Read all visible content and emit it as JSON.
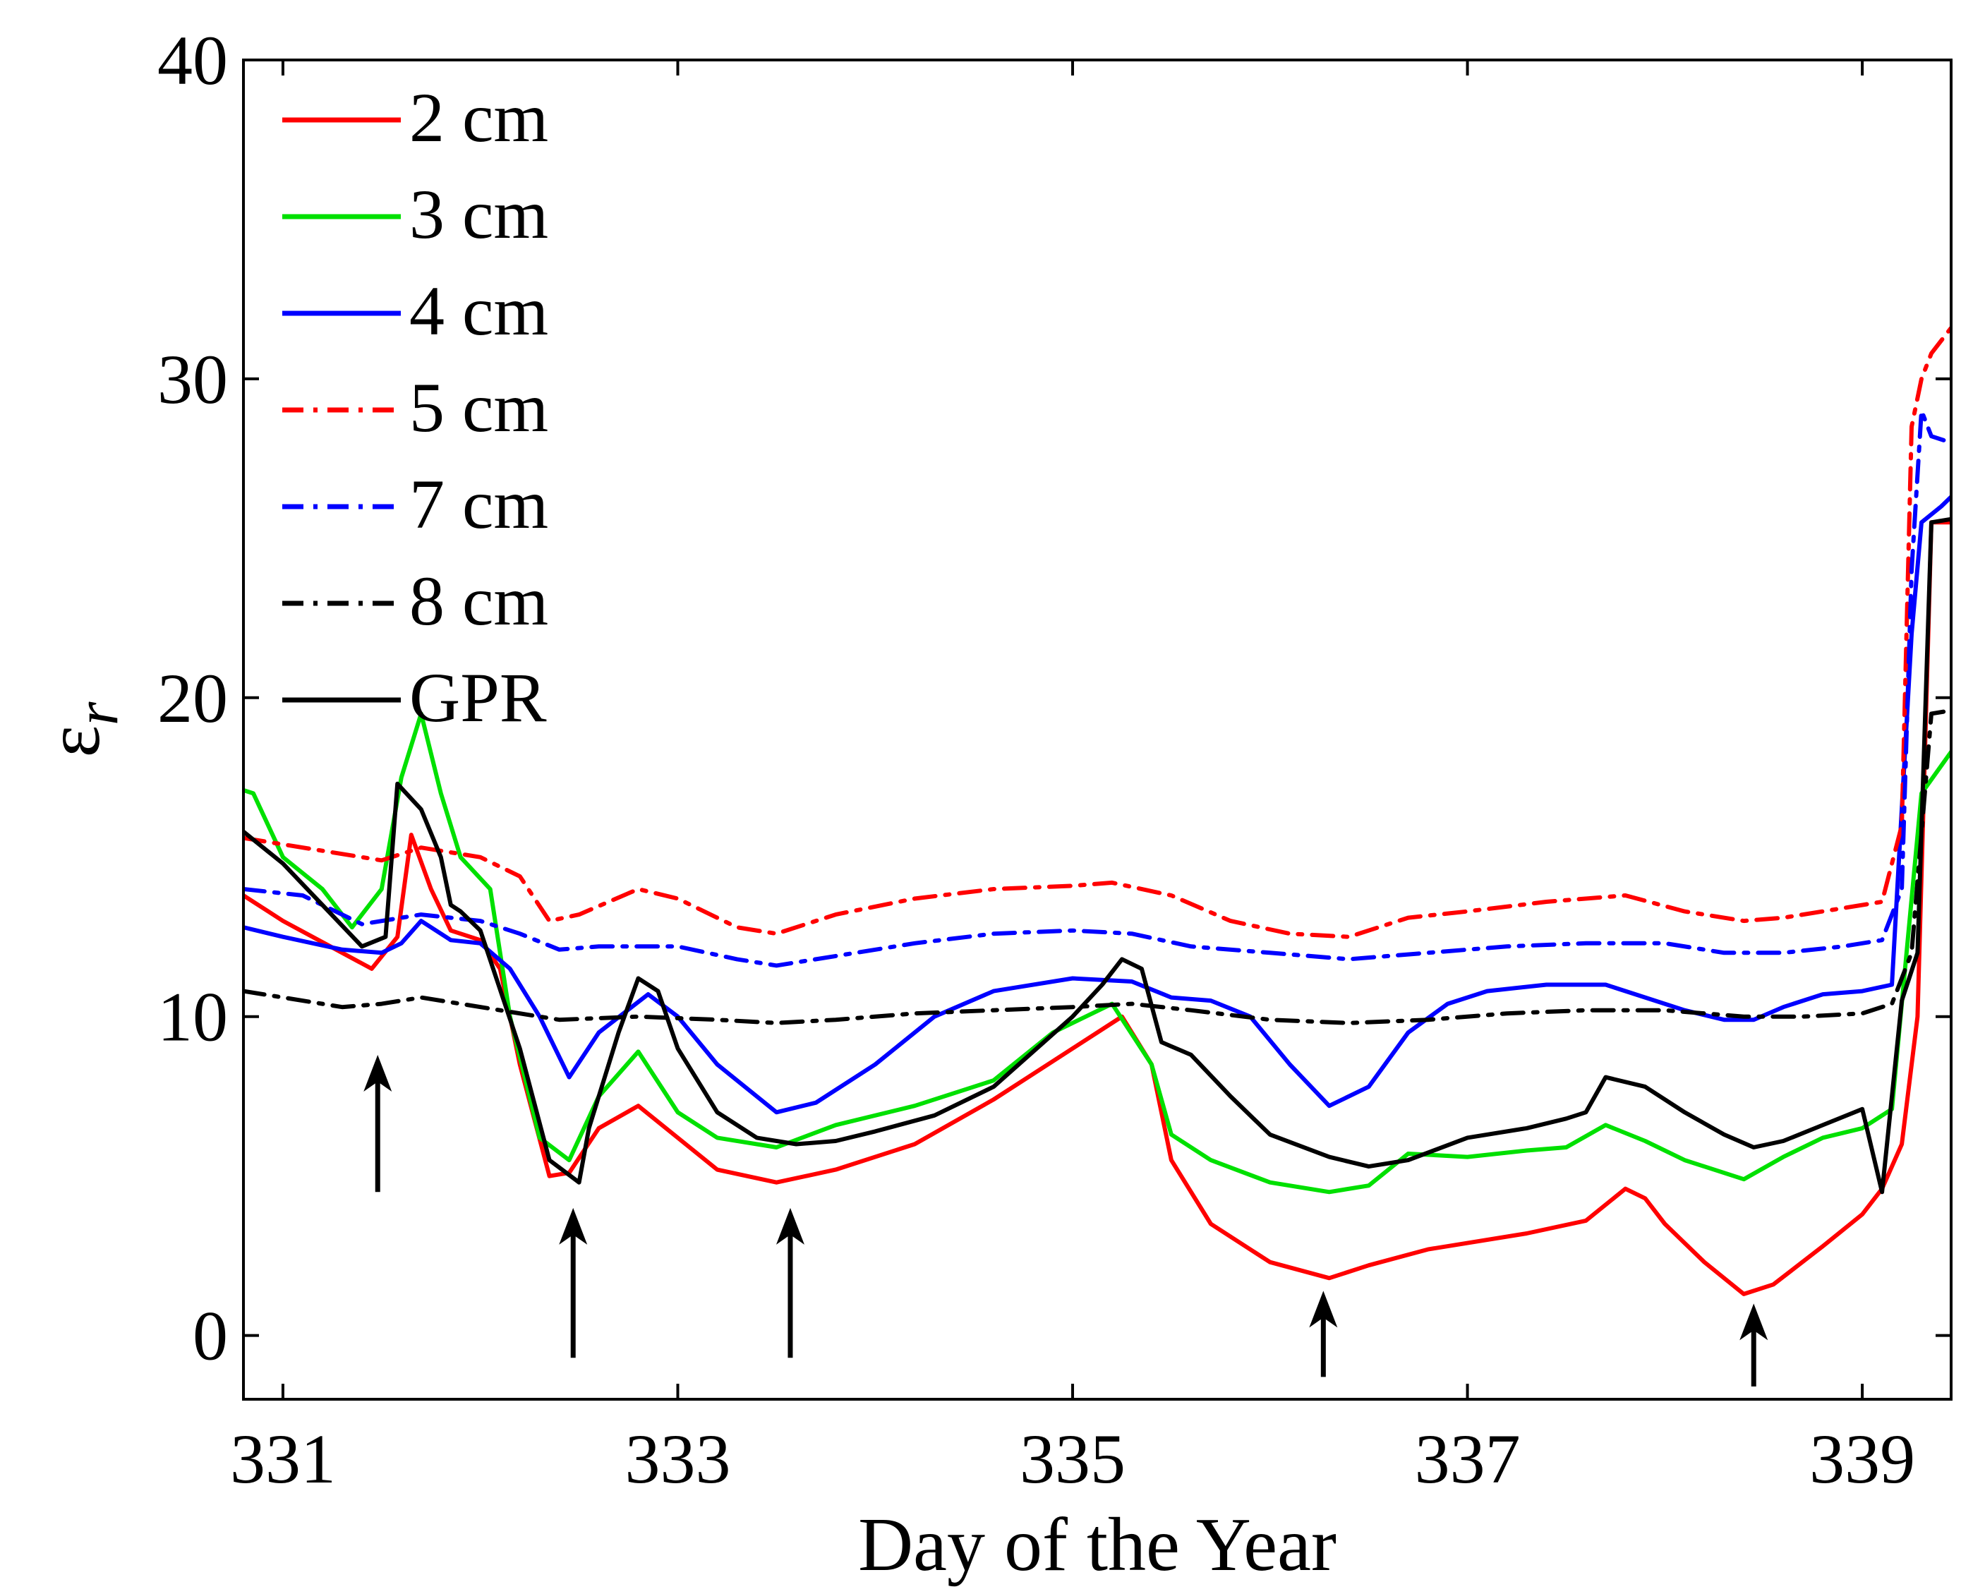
{
  "chart_data": {
    "type": "line",
    "title": "",
    "xlabel": "Day of the Year",
    "ylabel": "ε",
    "ylabel_subscript": "r",
    "xlim": [
      330.8,
      339.45
    ],
    "ylim": [
      -2,
      40
    ],
    "xticks": [
      331,
      333,
      335,
      337,
      339
    ],
    "xtick_labels": [
      "331",
      "333",
      "335",
      "337",
      "339"
    ],
    "yticks": [
      0,
      10,
      20,
      30,
      40
    ],
    "ytick_labels": [
      "0",
      "10",
      "20",
      "30",
      "40"
    ],
    "grid": false,
    "legend_position": "top-left",
    "series": [
      {
        "name": "2 cm",
        "color": "#ff0000",
        "dash": "solid",
        "x": [
          330.8,
          331.0,
          331.3,
          331.45,
          331.58,
          331.65,
          331.75,
          331.85,
          332.0,
          332.1,
          332.2,
          332.35,
          332.45,
          332.6,
          332.8,
          333.0,
          333.2,
          333.5,
          333.8,
          334.2,
          334.6,
          335.0,
          335.25,
          335.4,
          335.5,
          335.7,
          336.0,
          336.3,
          336.5,
          336.8,
          337.0,
          337.3,
          337.6,
          337.8,
          337.9,
          338.0,
          338.2,
          338.4,
          338.55,
          338.8,
          339.0,
          339.1,
          339.2,
          339.28,
          339.35,
          339.45
        ],
        "y": [
          13.8,
          13.0,
          12.0,
          11.5,
          12.5,
          15.7,
          14.0,
          12.7,
          12.4,
          11.5,
          8.5,
          5.0,
          5.1,
          6.5,
          7.2,
          6.2,
          5.2,
          4.8,
          5.2,
          6.0,
          7.4,
          9.0,
          10.0,
          8.5,
          5.5,
          3.5,
          2.3,
          1.8,
          2.2,
          2.7,
          2.9,
          3.2,
          3.6,
          4.6,
          4.3,
          3.5,
          2.3,
          1.3,
          1.6,
          2.8,
          3.8,
          4.6,
          6.0,
          10.0,
          25.5,
          25.5
        ]
      },
      {
        "name": "3 cm",
        "color": "#00e000",
        "dash": "solid",
        "x": [
          330.8,
          330.85,
          331.0,
          331.2,
          331.35,
          331.5,
          331.6,
          331.7,
          331.8,
          331.9,
          332.05,
          332.15,
          332.3,
          332.45,
          332.6,
          332.8,
          333.0,
          333.2,
          333.5,
          333.8,
          334.2,
          334.6,
          334.9,
          335.2,
          335.4,
          335.5,
          335.7,
          336.0,
          336.3,
          336.5,
          336.7,
          337.0,
          337.3,
          337.5,
          337.7,
          337.9,
          338.1,
          338.4,
          338.6,
          338.8,
          339.0,
          339.15,
          339.3,
          339.45
        ],
        "y": [
          17.1,
          17.0,
          15.0,
          14.0,
          12.8,
          14.0,
          17.5,
          19.5,
          17.0,
          15.0,
          14.0,
          10.0,
          6.2,
          5.5,
          7.5,
          8.9,
          7.0,
          6.2,
          5.9,
          6.6,
          7.2,
          8.0,
          9.5,
          10.4,
          8.5,
          6.3,
          5.5,
          4.8,
          4.5,
          4.7,
          5.7,
          5.6,
          5.8,
          5.9,
          6.6,
          6.1,
          5.5,
          4.9,
          5.6,
          6.2,
          6.5,
          7.1,
          17.0,
          18.3
        ]
      },
      {
        "name": "4 cm",
        "color": "#0000ff",
        "dash": "solid",
        "x": [
          330.8,
          331.0,
          331.3,
          331.5,
          331.6,
          331.7,
          331.85,
          332.0,
          332.15,
          332.3,
          332.45,
          332.6,
          332.85,
          333.0,
          333.2,
          333.5,
          333.7,
          334.0,
          334.3,
          334.6,
          335.0,
          335.3,
          335.5,
          335.7,
          335.9,
          336.1,
          336.3,
          336.5,
          336.7,
          336.9,
          337.1,
          337.4,
          337.7,
          337.9,
          338.1,
          338.3,
          338.45,
          338.6,
          338.8,
          339.0,
          339.15,
          339.25,
          339.3,
          339.4,
          339.45
        ],
        "y": [
          12.8,
          12.5,
          12.1,
          12.0,
          12.3,
          13.0,
          12.4,
          12.3,
          11.5,
          10.0,
          8.1,
          9.5,
          10.7,
          10.0,
          8.5,
          7.0,
          7.3,
          8.5,
          10.0,
          10.8,
          11.2,
          11.1,
          10.6,
          10.5,
          10.0,
          8.5,
          7.2,
          7.8,
          9.5,
          10.4,
          10.8,
          11.0,
          11.0,
          10.6,
          10.2,
          9.9,
          9.9,
          10.3,
          10.7,
          10.8,
          11.0,
          22.0,
          25.5,
          26.0,
          26.3
        ]
      },
      {
        "name": "5 cm",
        "color": "#ff0000",
        "dash": "dashdot",
        "x": [
          330.8,
          331.2,
          331.5,
          331.7,
          332.0,
          332.2,
          332.35,
          332.5,
          332.8,
          333.0,
          333.3,
          333.5,
          333.8,
          334.2,
          334.6,
          335.0,
          335.2,
          335.5,
          335.8,
          336.1,
          336.4,
          336.7,
          337.0,
          337.4,
          337.8,
          338.1,
          338.4,
          338.6,
          338.9,
          339.1,
          339.2,
          339.25,
          339.3,
          339.35,
          339.45
        ],
        "y": [
          15.6,
          15.2,
          14.9,
          15.3,
          15.0,
          14.4,
          13.0,
          13.2,
          14.0,
          13.7,
          12.8,
          12.6,
          13.2,
          13.7,
          14.0,
          14.1,
          14.2,
          13.8,
          13.0,
          12.6,
          12.5,
          13.1,
          13.3,
          13.6,
          13.8,
          13.3,
          13.0,
          13.1,
          13.4,
          13.6,
          16.0,
          28.5,
          30.0,
          30.8,
          31.6
        ]
      },
      {
        "name": "7 cm",
        "color": "#0000ff",
        "dash": "dashdot",
        "x": [
          330.8,
          331.1,
          331.4,
          331.7,
          332.0,
          332.2,
          332.4,
          332.6,
          333.0,
          333.3,
          333.5,
          333.8,
          334.2,
          334.6,
          335.0,
          335.3,
          335.6,
          336.0,
          336.4,
          336.8,
          337.2,
          337.6,
          338.0,
          338.3,
          338.6,
          338.9,
          339.1,
          339.2,
          339.25,
          339.3,
          339.35,
          339.45
        ],
        "y": [
          14.0,
          13.8,
          12.9,
          13.2,
          13.0,
          12.6,
          12.1,
          12.2,
          12.2,
          11.8,
          11.6,
          11.9,
          12.3,
          12.6,
          12.7,
          12.6,
          12.2,
          12.0,
          11.8,
          12.0,
          12.2,
          12.3,
          12.3,
          12.0,
          12.0,
          12.2,
          12.4,
          14.0,
          24.0,
          29.0,
          28.2,
          28.0
        ]
      },
      {
        "name": "8 cm",
        "color": "#000000",
        "dash": "dashdot",
        "x": [
          330.8,
          331.0,
          331.3,
          331.5,
          331.7,
          331.9,
          332.1,
          332.4,
          332.8,
          333.2,
          333.5,
          333.8,
          334.2,
          334.6,
          335.0,
          335.3,
          335.6,
          336.0,
          336.4,
          336.8,
          337.2,
          337.6,
          338.0,
          338.4,
          338.7,
          339.0,
          339.15,
          339.25,
          339.35,
          339.45
        ],
        "y": [
          10.8,
          10.6,
          10.3,
          10.4,
          10.6,
          10.4,
          10.2,
          9.9,
          10.0,
          9.9,
          9.8,
          9.9,
          10.1,
          10.2,
          10.3,
          10.4,
          10.2,
          9.9,
          9.8,
          9.9,
          10.1,
          10.2,
          10.2,
          10.0,
          10.0,
          10.1,
          10.4,
          12.0,
          19.5,
          19.6
        ]
      },
      {
        "name": "GPR",
        "color": "#000000",
        "dash": "solid",
        "x": [
          330.8,
          331.0,
          331.2,
          331.4,
          331.52,
          331.58,
          331.7,
          331.8,
          331.85,
          331.9,
          332.0,
          332.2,
          332.35,
          332.5,
          332.55,
          332.7,
          332.8,
          332.9,
          333.0,
          333.2,
          333.4,
          333.6,
          333.8,
          334.0,
          334.3,
          334.6,
          335.0,
          335.15,
          335.25,
          335.35,
          335.45,
          335.6,
          335.8,
          336.0,
          336.3,
          336.5,
          336.7,
          337.0,
          337.3,
          337.5,
          337.6,
          337.7,
          337.9,
          338.1,
          338.3,
          338.45,
          338.6,
          338.8,
          339.0,
          339.1,
          339.2,
          339.28,
          339.35,
          339.45
        ],
        "y": [
          15.8,
          14.8,
          13.5,
          12.2,
          12.5,
          17.3,
          16.5,
          15.0,
          13.5,
          13.3,
          12.7,
          9.0,
          5.5,
          4.8,
          6.5,
          9.5,
          11.2,
          10.8,
          9.0,
          7.0,
          6.2,
          6.0,
          6.1,
          6.4,
          6.9,
          7.8,
          10.0,
          11.0,
          11.8,
          11.5,
          9.2,
          8.8,
          7.5,
          6.3,
          5.6,
          5.3,
          5.5,
          6.2,
          6.5,
          6.8,
          7.0,
          8.1,
          7.8,
          7.0,
          6.3,
          5.9,
          6.1,
          6.6,
          7.1,
          4.5,
          10.5,
          12.0,
          25.5,
          25.6
        ]
      }
    ],
    "annotations": [
      {
        "type": "arrow",
        "x": 331.48,
        "y_tail": 4.5,
        "y_head": 8.8
      },
      {
        "type": "arrow",
        "x": 332.47,
        "y_tail": -0.7,
        "y_head": 4.0
      },
      {
        "type": "arrow",
        "x": 333.57,
        "y_tail": -0.7,
        "y_head": 4.0
      },
      {
        "type": "arrow",
        "x": 336.27,
        "y_tail": -1.3,
        "y_head": 1.4
      },
      {
        "type": "arrow",
        "x": 338.45,
        "y_tail": -1.6,
        "y_head": 1.0
      }
    ]
  }
}
